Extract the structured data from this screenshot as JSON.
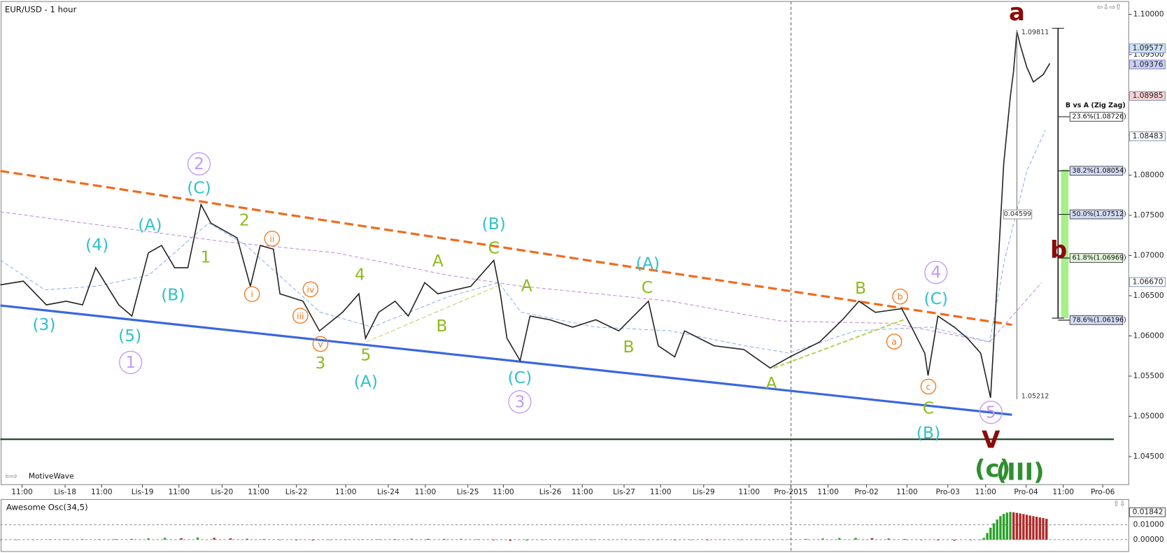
{
  "chart_data": {
    "type": "line",
    "title": "EUR/USD - 1 hour",
    "watermark": "MotiveWave",
    "xlim": [
      0,
      343
    ],
    "ylim": [
      1.0415,
      1.1016
    ],
    "xticks": [
      {
        "value": 6.6,
        "label": "11:00"
      },
      {
        "value": 19.7,
        "label": "Lis-18"
      },
      {
        "value": 30.8,
        "label": "11:00"
      },
      {
        "value": 43.2,
        "label": "Lis-19"
      },
      {
        "value": 54.3,
        "label": "11:00"
      },
      {
        "value": 67.4,
        "label": "Lis-20"
      },
      {
        "value": 78.5,
        "label": "11:00"
      },
      {
        "value": 90,
        "label": "Lis-22"
      },
      {
        "value": 105,
        "label": "11:00"
      },
      {
        "value": 117.9,
        "label": "Lis-24"
      },
      {
        "value": 129.2,
        "label": "11:00"
      },
      {
        "value": 142.1,
        "label": "Lis-25"
      },
      {
        "value": 152.9,
        "label": "11:00"
      },
      {
        "value": 167.2,
        "label": "Lis-26"
      },
      {
        "value": 176.9,
        "label": "11:00"
      },
      {
        "value": 189.6,
        "label": "Lis-27"
      },
      {
        "value": 200.7,
        "label": "11:00"
      },
      {
        "value": 213.8,
        "label": "Lis-29"
      },
      {
        "value": 227.6,
        "label": "11:00"
      },
      {
        "value": 240.3,
        "label": "Pro-2015"
      },
      {
        "value": 251.6,
        "label": "11:00"
      },
      {
        "value": 263.3,
        "label": "Pro-02"
      },
      {
        "value": 275.6,
        "label": "11:00"
      },
      {
        "value": 288,
        "label": "Pro-03"
      },
      {
        "value": 299.5,
        "label": "11:00"
      },
      {
        "value": 311.8,
        "label": "Pro-04"
      },
      {
        "value": 323.1,
        "label": "11:00"
      },
      {
        "value": 335.1,
        "label": "Pro-06"
      }
    ],
    "yticks": [
      {
        "value": 1.1,
        "label": "1.10000"
      },
      {
        "value": 1.095,
        "label": "1.09500"
      },
      {
        "value": 1.09,
        "label": "1.09000"
      },
      {
        "value": 1.085,
        "label": "1.08500"
      },
      {
        "value": 1.08,
        "label": "1.08000"
      },
      {
        "value": 1.075,
        "label": "1.07500"
      },
      {
        "value": 1.07,
        "label": "1.07000"
      },
      {
        "value": 1.065,
        "label": "1.06500"
      },
      {
        "value": 1.06,
        "label": "1.06000"
      },
      {
        "value": 1.055,
        "label": "1.05500"
      },
      {
        "value": 1.05,
        "label": "1.05000"
      },
      {
        "value": 1.045,
        "label": "1.04500"
      }
    ],
    "series": [
      {
        "name": "EUR/USD",
        "color": "#222222",
        "x": [
          0,
          7,
          14,
          20,
          25,
          29,
          36,
          40,
          45,
          49,
          53,
          57,
          61,
          64,
          72,
          76,
          79,
          83,
          85,
          92,
          97,
          104,
          109,
          111,
          115,
          120,
          124,
          129,
          133,
          143,
          150,
          152,
          154,
          158,
          161,
          167,
          174,
          181,
          188,
          197,
          200,
          205,
          208,
          217,
          226,
          234,
          240,
          249,
          256,
          261,
          266,
          274,
          277,
          281,
          282,
          285,
          290,
          294,
          298,
          301,
          303,
          305,
          307,
          308,
          309,
          310,
          312,
          314,
          317,
          319
        ],
        "values": [
          1.06635,
          1.06681,
          1.06386,
          1.06432,
          1.06386,
          1.06848,
          1.06386,
          1.06247,
          1.07033,
          1.07125,
          1.06848,
          1.06848,
          1.07634,
          1.07403,
          1.07218,
          1.06617,
          1.07125,
          1.07079,
          1.06524,
          1.06432,
          1.06062,
          1.06293,
          1.06524,
          1.0597,
          1.06293,
          1.06432,
          1.06247,
          1.06663,
          1.06524,
          1.06617,
          1.0694,
          1.06524,
          1.0597,
          1.05692,
          1.06247,
          1.06201,
          1.06108,
          1.06201,
          1.06062,
          1.06432,
          1.05877,
          1.05739,
          1.06062,
          1.05877,
          1.05831,
          1.056,
          1.05739,
          1.05923,
          1.06201,
          1.06432,
          1.06293,
          1.06339,
          1.06108,
          1.05785,
          1.05507,
          1.06247,
          1.06108,
          1.0597,
          1.05785,
          1.0523,
          1.06663,
          1.08142,
          1.08974,
          1.09297,
          1.09787,
          1.09621,
          1.09344,
          1.09159,
          1.09251,
          1.0939
        ]
      }
    ],
    "price_markers": [
      {
        "value": 1.09577,
        "label": "1.09577",
        "color": "#cfe3f7"
      },
      {
        "value": 1.09376,
        "label": "1.09376",
        "color": "#cdcdf7"
      },
      {
        "value": 1.08985,
        "label": "1.08985",
        "color": "#f6d2d2"
      },
      {
        "value": 1.08483,
        "label": "1.08483",
        "color": "#ffffff"
      },
      {
        "value": 1.0667,
        "label": "1.06670",
        "color": "#ffffff"
      }
    ],
    "measure": {
      "x": 309,
      "high": 1.09811,
      "low": 1.05212,
      "range": 0.04599
    },
    "fib": {
      "title": "B vs A (Zig Zag)",
      "levels": [
        {
          "value": 1.08726,
          "label": "23.6%(1.08726)",
          "color": "#ffffff"
        },
        {
          "value": 1.08054,
          "label": "38.2%(1.08054)",
          "color": "#d3dbf5"
        },
        {
          "value": 1.07512,
          "label": "50.0%(1.07512)",
          "color": "#d3dbf5"
        },
        {
          "value": 1.06969,
          "label": "61.8%(1.06969)",
          "color": "#e1f5d8"
        },
        {
          "value": 1.06196,
          "label": "78.6%(1.06196)",
          "color": "#d3dbf5"
        }
      ]
    },
    "waves": [
      {
        "text": "(3)",
        "x": 13.3,
        "y": 1.0614,
        "color": "#30c0cc",
        "circled": false
      },
      {
        "text": "(4)",
        "x": 29.4,
        "y": 1.0713,
        "color": "#30c0cc",
        "circled": false
      },
      {
        "text": "(5)",
        "x": 39.4,
        "y": 1.06,
        "color": "#30c0cc",
        "circled": false
      },
      {
        "text": "1",
        "x": 39.6,
        "y": 1.0567,
        "color": "#c49af2",
        "circled": true
      },
      {
        "text": "(A)",
        "x": 45.5,
        "y": 1.0738,
        "color": "#30c0cc",
        "circled": false
      },
      {
        "text": "(B)",
        "x": 52.5,
        "y": 1.0651,
        "color": "#30c0cc",
        "circled": false
      },
      {
        "text": "2",
        "x": 60.4,
        "y": 1.0814,
        "color": "#c49af2",
        "circled": true
      },
      {
        "text": "(C)",
        "x": 60.4,
        "y": 1.0784,
        "color": "#30c0cc",
        "circled": false
      },
      {
        "text": "2",
        "x": 74.2,
        "y": 1.0744,
        "color": "#8cbb1c",
        "circled": false
      },
      {
        "text": "1",
        "x": 62.4,
        "y": 1.0698,
        "color": "#8cbb1c",
        "circled": false
      },
      {
        "text": "i",
        "x": 76.5,
        "y": 1.0652,
        "color": "#f07a1e",
        "circled": true
      },
      {
        "text": "ii",
        "x": 82.6,
        "y": 1.0721,
        "color": "#f07a1e",
        "circled": true
      },
      {
        "text": "iv",
        "x": 94.3,
        "y": 1.0658,
        "color": "#f07a1e",
        "circled": true
      },
      {
        "text": "iii",
        "x": 91.2,
        "y": 1.0625,
        "color": "#f07a1e",
        "circled": true
      },
      {
        "text": "v",
        "x": 97.3,
        "y": 1.059,
        "color": "#f07a1e",
        "circled": true
      },
      {
        "text": "3",
        "x": 97.3,
        "y": 1.0566,
        "color": "#8cbb1c",
        "circled": false
      },
      {
        "text": "4",
        "x": 109.3,
        "y": 1.0676,
        "color": "#8cbb1c",
        "circled": false
      },
      {
        "text": "5",
        "x": 111.1,
        "y": 1.0576,
        "color": "#8cbb1c",
        "circled": false
      },
      {
        "text": "(A)",
        "x": 111.1,
        "y": 1.0543,
        "color": "#30c0cc",
        "circled": false
      },
      {
        "text": "A",
        "x": 133,
        "y": 1.0693,
        "color": "#8cbb1c",
        "circled": false
      },
      {
        "text": "B",
        "x": 134.2,
        "y": 1.0612,
        "color": "#8cbb1c",
        "circled": false
      },
      {
        "text": "(B)",
        "x": 150,
        "y": 1.0739,
        "color": "#30c0cc",
        "circled": false
      },
      {
        "text": "C",
        "x": 150,
        "y": 1.0709,
        "color": "#8cbb1c",
        "circled": false
      },
      {
        "text": "A",
        "x": 160,
        "y": 1.0662,
        "color": "#8cbb1c",
        "circled": false
      },
      {
        "text": "(C)",
        "x": 157.9,
        "y": 1.0548,
        "color": "#30c0cc",
        "circled": false
      },
      {
        "text": "3",
        "x": 157.9,
        "y": 1.0518,
        "color": "#c49af2",
        "circled": true
      },
      {
        "text": "B",
        "x": 191,
        "y": 1.0586,
        "color": "#8cbb1c",
        "circled": false
      },
      {
        "text": "(A)",
        "x": 196.8,
        "y": 1.069,
        "color": "#30c0cc",
        "circled": false
      },
      {
        "text": "C",
        "x": 196.6,
        "y": 1.066,
        "color": "#8cbb1c",
        "circled": false
      },
      {
        "text": "A",
        "x": 234.4,
        "y": 1.0541,
        "color": "#8cbb1c",
        "circled": false
      },
      {
        "text": "B",
        "x": 261.5,
        "y": 1.0659,
        "color": "#8cbb1c",
        "circled": false
      },
      {
        "text": "b",
        "x": 273.5,
        "y": 1.0649,
        "color": "#f07a1e",
        "circled": true
      },
      {
        "text": "a",
        "x": 271.7,
        "y": 1.0593,
        "color": "#f07a1e",
        "circled": true
      },
      {
        "text": "4",
        "x": 284.4,
        "y": 1.0679,
        "color": "#c49af2",
        "circled": true
      },
      {
        "text": "(C)",
        "x": 284.4,
        "y": 1.0646,
        "color": "#30c0cc",
        "circled": false
      },
      {
        "text": "c",
        "x": 282.1,
        "y": 1.0537,
        "color": "#f07a1e",
        "circled": true
      },
      {
        "text": "C",
        "x": 282.1,
        "y": 1.051,
        "color": "#8cbb1c",
        "circled": false
      },
      {
        "text": "(B)",
        "x": 282.1,
        "y": 1.0479,
        "color": "#30c0cc",
        "circled": false
      },
      {
        "text": "5",
        "x": 301.1,
        "y": 1.0505,
        "color": "#c49af2",
        "circled": true
      },
      {
        "text": "V",
        "x": 301.1,
        "y": 1.047,
        "color": "#8b0a0a",
        "circled": false
      },
      {
        "text": "a",
        "x": 309,
        "y": 1.1002,
        "color": "#8b0a0a",
        "circled": false
      },
      {
        "text": "b",
        "x": 321.7,
        "y": 1.0706,
        "color": "#8b0a0a",
        "circled": false
      },
      {
        "text": "(c)",
        "x": 301.6,
        "y": 1.0434,
        "color": "#2f8f2f",
        "circled": false
      },
      {
        "text": "(III)",
        "x": 310,
        "y": 1.043,
        "color": "#2f8f2f",
        "circled": false
      }
    ],
    "oscillator": {
      "title": "Awesome Osc(34,5)",
      "ylim": [
        -0.008,
        0.026
      ],
      "yticks": [
        {
          "value": 0,
          "label": "0.00000"
        },
        {
          "value": 0.01,
          "label": "0.01000"
        }
      ],
      "marker": {
        "value": 0.01842,
        "label": "0.01842"
      },
      "up_color": "#27a327",
      "down_color": "#b02a2a",
      "x": [
        0,
        5,
        10,
        15,
        20,
        25,
        30,
        35,
        40,
        45,
        50,
        55,
        60,
        65,
        70,
        75,
        80,
        85,
        90,
        95,
        100,
        105,
        110,
        115,
        120,
        125,
        130,
        135,
        140,
        145,
        150,
        155,
        160,
        165,
        170,
        175,
        180,
        185,
        190,
        195,
        200,
        205,
        210,
        215,
        220,
        225,
        230,
        235,
        240,
        245,
        250,
        255,
        260,
        265,
        270,
        275,
        280,
        285,
        290,
        295,
        298,
        299,
        300,
        301,
        302,
        303,
        304,
        305,
        306,
        307,
        308,
        309,
        310,
        311,
        312,
        313,
        314,
        315,
        316,
        317,
        318
      ],
      "values": [
        -0.0003,
        -0.0002,
        0.0001,
        0.0002,
        0.0003,
        0.0002,
        0.0003,
        0.0004,
        0.0005,
        0.0009,
        0.0012,
        0.001,
        0.0014,
        0.0012,
        0.0009,
        0.0006,
        0.0003,
        -0.0002,
        -0.0004,
        -0.0005,
        -0.0003,
        0.0001,
        0.0002,
        0.0003,
        0.0004,
        0.0006,
        0.0005,
        0.0004,
        0.0005,
        0.0002,
        -0.0004,
        -0.0008,
        -0.0006,
        -0.0003,
        -0.0002,
        -0.0001,
        0.0001,
        0.0001,
        0.0002,
        0.0001,
        -0.0002,
        -0.0004,
        -0.0003,
        -0.0004,
        -0.0002,
        -0.0001,
        0.0001,
        0.0002,
        0.0003,
        0.0005,
        0.0008,
        0.0011,
        0.0012,
        0.001,
        0.0007,
        0.0004,
        -0.0002,
        -0.0005,
        -0.0007,
        -0.0004,
        -0.0002,
        0.0012,
        0.0045,
        0.008,
        0.011,
        0.0135,
        0.0158,
        0.0173,
        0.0182,
        0.0186,
        0.0184,
        0.018,
        0.0176,
        0.0172,
        0.0167,
        0.0162,
        0.0158,
        0.0154,
        0.0149,
        0.0145,
        0.014
      ]
    }
  }
}
